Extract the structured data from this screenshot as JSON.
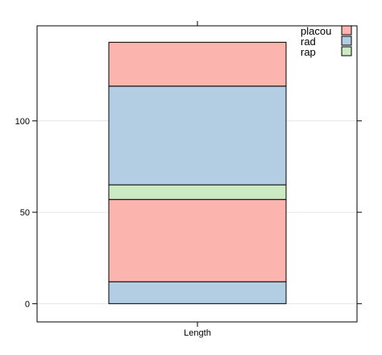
{
  "chart_data": {
    "type": "bar",
    "stacked": true,
    "categories": [
      "Length"
    ],
    "segments": [
      {
        "name": "rad",
        "from": 0,
        "to": 12,
        "color": "#b3cde3"
      },
      {
        "name": "placou",
        "from": 12,
        "to": 57,
        "color": "#fbb4ae"
      },
      {
        "name": "rap",
        "from": 57,
        "to": 65,
        "color": "#ccebc5"
      },
      {
        "name": "rad",
        "from": 65,
        "to": 119,
        "color": "#b3cde3"
      },
      {
        "name": "placou",
        "from": 119,
        "to": 143,
        "color": "#fbb4ae"
      }
    ],
    "legend": [
      {
        "label": "placou",
        "color": "#fbb4ae"
      },
      {
        "label": "rad",
        "color": "#b3cde3"
      },
      {
        "label": "rap",
        "color": "#ccebc5"
      }
    ],
    "legend_position": "top-right",
    "yticks": [
      0,
      50,
      100
    ],
    "ylim": [
      -10,
      152
    ],
    "grid": true,
    "gridColor": "#e6e6e6",
    "edgeColor": "#000000"
  }
}
